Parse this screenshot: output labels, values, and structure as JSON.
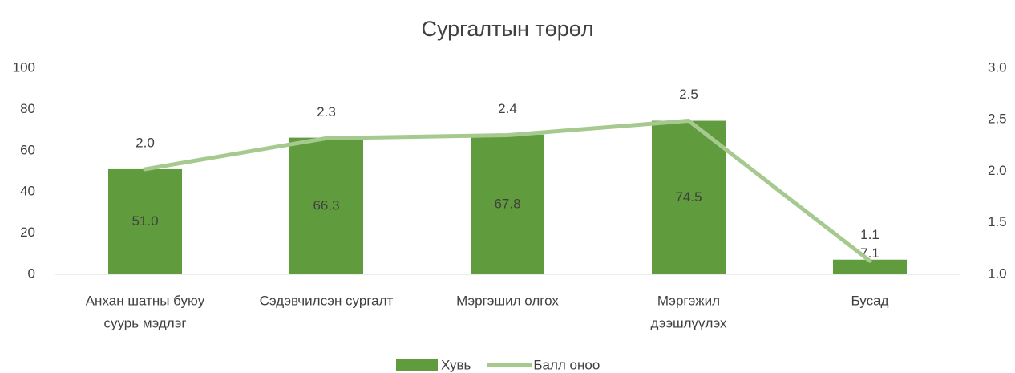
{
  "chart_data": {
    "type": "bar_line",
    "title": "Сургалтын төрөл",
    "categories": [
      [
        "Анхан шатны буюу",
        "суурь мэдлэг"
      ],
      [
        "Сэдэвчилсэн сургалт"
      ],
      [
        "Мэргэшил олгох"
      ],
      [
        "Мэргэжил",
        "дээшлүүлэх"
      ],
      [
        "Бусад"
      ]
    ],
    "series": [
      {
        "name": "Хувь",
        "color": "#609c3d",
        "type": "bar",
        "values": [
          51.0,
          66.3,
          67.8,
          74.5,
          7.1
        ],
        "value_labels": [
          "51.0",
          "66.3",
          "67.8",
          "74.5",
          "7.1"
        ]
      },
      {
        "name": "Балл оноо",
        "color": "#a5c98f",
        "type": "line",
        "axis": "y2",
        "values": [
          2.02,
          2.32,
          2.35,
          2.49,
          1.13
        ],
        "value_labels": [
          "2.0",
          "2.3",
          "2.4",
          "2.5",
          "1.1"
        ]
      }
    ],
    "ylim": [
      0,
      100
    ],
    "yticks": [
      0,
      20,
      40,
      60,
      80,
      100
    ],
    "y2lim": [
      1.0,
      3.0
    ],
    "y2ticks": [
      {
        "value": 1.0,
        "label": "1.0"
      },
      {
        "value": 1.5,
        "label": "1.5"
      },
      {
        "value": 2.0,
        "label": "2.0"
      },
      {
        "value": 2.5,
        "label": "2.5"
      },
      {
        "value": 3.0,
        "label": "3.0"
      }
    ],
    "grid": false,
    "legend": "bottom"
  }
}
